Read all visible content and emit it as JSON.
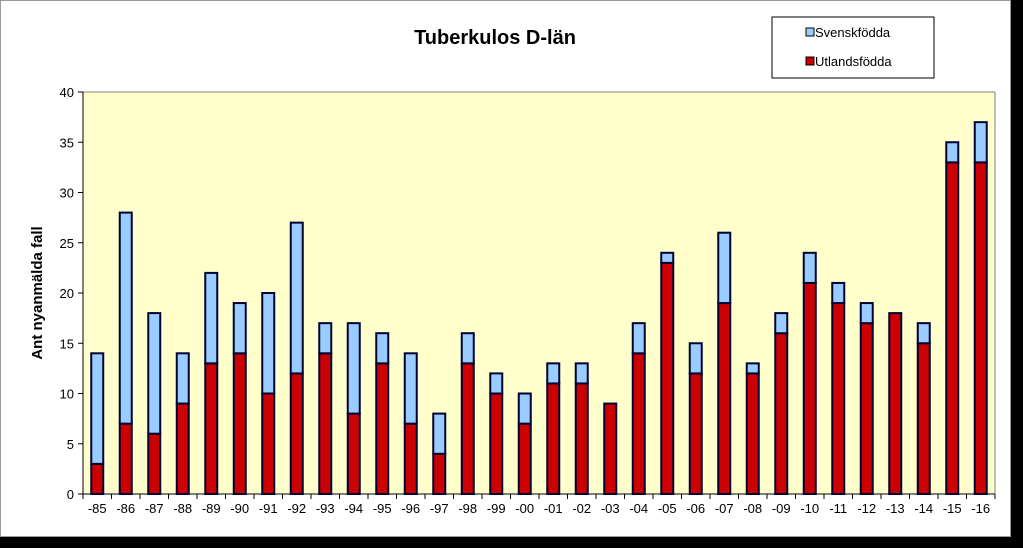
{
  "chart_data": {
    "type": "bar",
    "stacked": true,
    "title": "Tuberkulos D-län",
    "xlabel": "",
    "ylabel": "Ant nyanmälda fall",
    "ylim": [
      0,
      40
    ],
    "yticks": [
      0,
      5,
      10,
      15,
      20,
      25,
      30,
      35,
      40
    ],
    "grid": false,
    "legend_position": "top-right",
    "plot_background": "#ffffcc",
    "categories": [
      "-85",
      "-86",
      "-87",
      "-88",
      "-89",
      "-90",
      "-91",
      "-92",
      "-93",
      "-94",
      "-95",
      "-96",
      "-97",
      "-98",
      "-99",
      "-00",
      "-01",
      "-02",
      "-03",
      "-04",
      "-05",
      "-06",
      "-07",
      "-08",
      "-09",
      "-10",
      "-11",
      "-12",
      "-13",
      "-14",
      "-15",
      "-16"
    ],
    "series": [
      {
        "name": "Utlandsfödda",
        "color": "#cc0000",
        "values": [
          3,
          7,
          6,
          9,
          13,
          14,
          10,
          12,
          14,
          8,
          13,
          7,
          4,
          13,
          10,
          7,
          11,
          11,
          9,
          14,
          23,
          12,
          19,
          12,
          16,
          21,
          19,
          17,
          18,
          15,
          33,
          33
        ]
      },
      {
        "name": "Svenskfödda",
        "color": "#99ccff",
        "values": [
          11,
          21,
          12,
          5,
          9,
          5,
          10,
          15,
          3,
          9,
          3,
          7,
          4,
          3,
          2,
          3,
          2,
          2,
          0,
          3,
          1,
          3,
          7,
          1,
          2,
          3,
          2,
          2,
          0,
          2,
          2,
          4
        ]
      }
    ]
  }
}
